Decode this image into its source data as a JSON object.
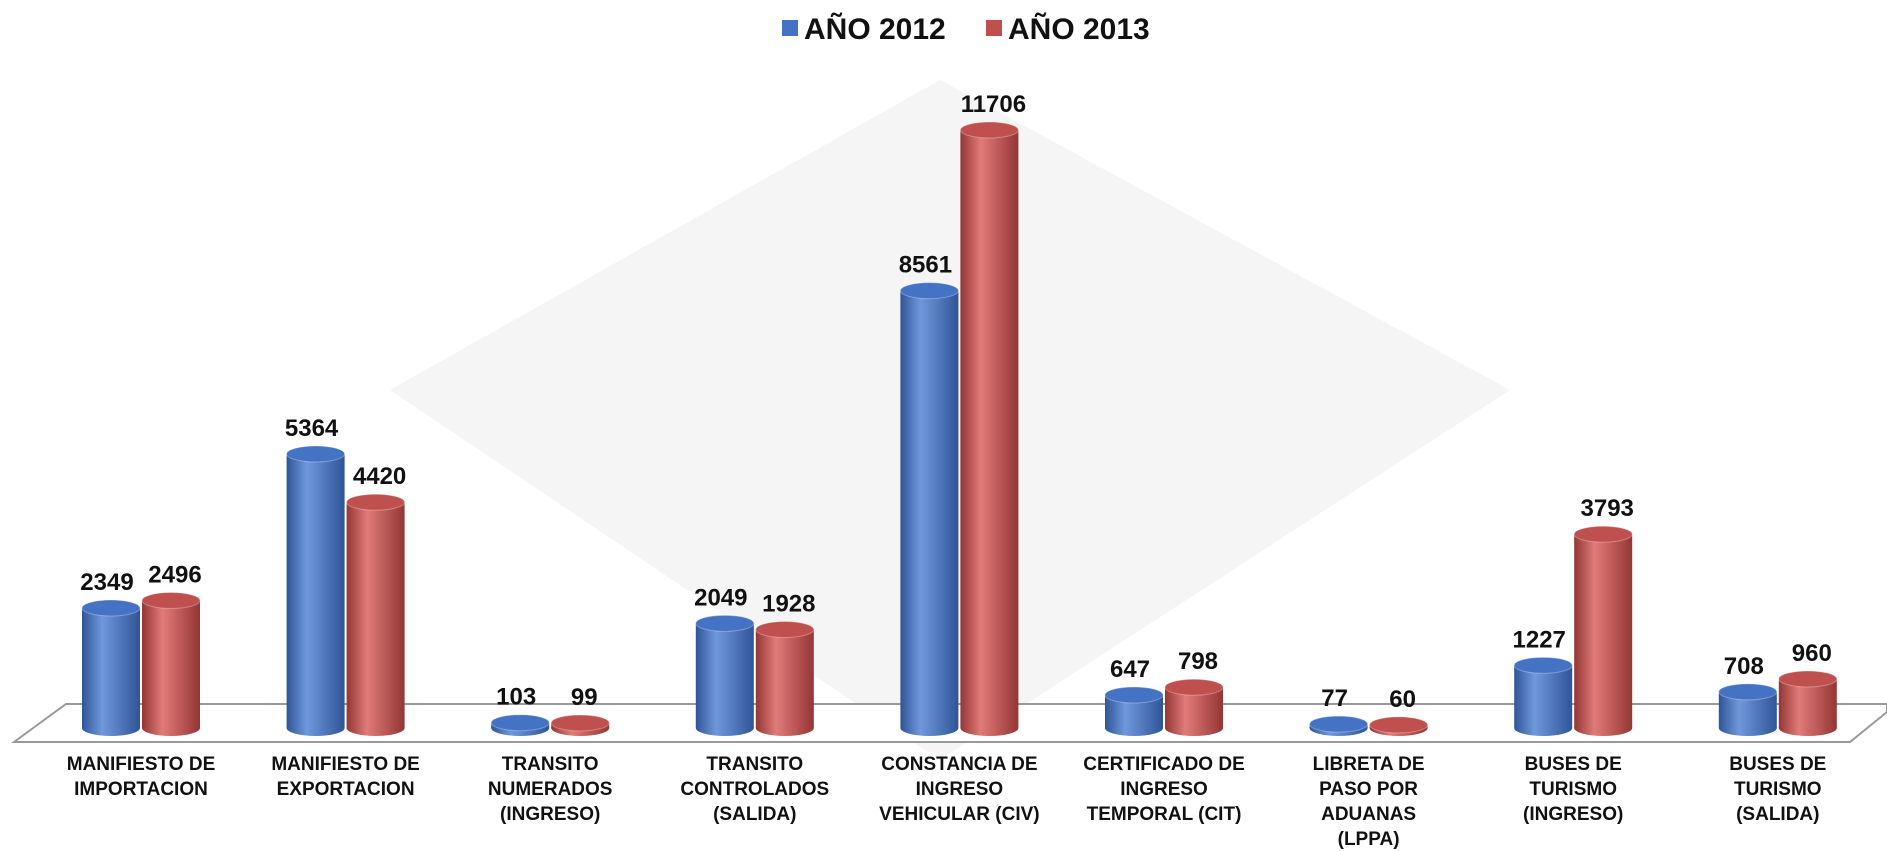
{
  "chart_data": {
    "type": "bar",
    "categories": [
      "MANIFIESTO DE\nIMPORTACION",
      "MANIFIESTO DE\nEXPORTACION",
      "TRANSITO\nNUMERADOS\n(INGRESO)",
      "TRANSITO\nCONTROLADOS\n(SALIDA)",
      "CONSTANCIA DE\nINGRESO\nVEHICULAR (CIV)",
      "CERTIFICADO DE\nINGRESO\nTEMPORAL (CIT)",
      "LIBRETA DE\nPASO POR\nADUANAS\n(LPPA)",
      "BUSES DE\nTURISMO\n(INGRESO)",
      "BUSES DE\nTURISMO\n(SALIDA)"
    ],
    "series": [
      {
        "name": "AÑO 2012",
        "color": "#4472c4",
        "values": [
          2349,
          5364,
          103,
          2049,
          8561,
          647,
          77,
          1227,
          708
        ]
      },
      {
        "name": "AÑO 2013",
        "color": "#c0504d",
        "values": [
          2496,
          4420,
          99,
          1928,
          11706,
          798,
          60,
          3793,
          960
        ]
      }
    ],
    "legend": "top"
  }
}
